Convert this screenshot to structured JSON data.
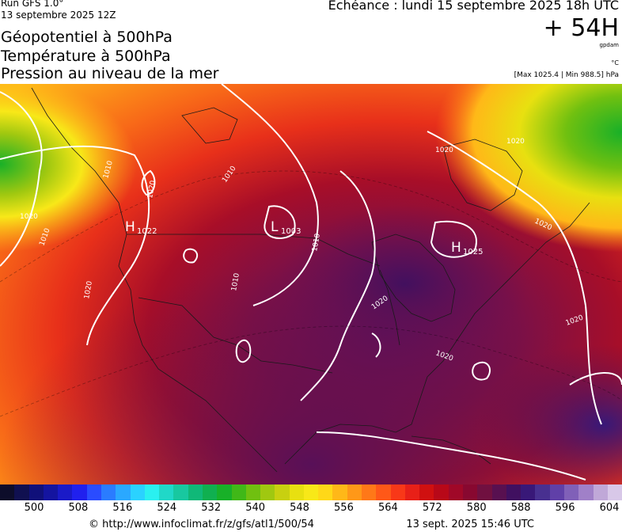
{
  "header": {
    "run_label": "Run GFS 1.0°",
    "run_date": "13 septembre 2025 12Z",
    "title_lines": [
      "Géopotentiel à 500hPa",
      "Température à 500hPa",
      "Pression au niveau de la mer"
    ],
    "echeance": "Echéance : lundi 15 septembre 2025 18h UTC",
    "lead_time": "+ 54H",
    "lead_unit": "gpdam",
    "temp_unit": "°C",
    "max_min": "[Max 1025.4 | Min 988.5] hPa"
  },
  "map": {
    "pressure_centers": [
      {
        "letter": "H",
        "value": "1022"
      },
      {
        "letter": "L",
        "value": "1003"
      },
      {
        "letter": "H",
        "value": "1025"
      }
    ],
    "isobar_labels": [
      "1010",
      "1020",
      "1020",
      "1010",
      "1020",
      "1010",
      "1010",
      "1010",
      "1020",
      "1020",
      "1020",
      "1020",
      "1020",
      "1020"
    ]
  },
  "colorbar": {
    "colors": [
      "#0d0d2a",
      "#101050",
      "#10107a",
      "#1414a0",
      "#1a1ac8",
      "#2020ee",
      "#2a4cff",
      "#2a7cff",
      "#2aa8ff",
      "#2ad2ff",
      "#2af0f0",
      "#20d8c8",
      "#18c8a0",
      "#10b878",
      "#10b050",
      "#18b028",
      "#40b818",
      "#70c010",
      "#a0c810",
      "#c8d010",
      "#e8e010",
      "#f8e818",
      "#ffd818",
      "#ffb818",
      "#ff9818",
      "#ff7818",
      "#ff5818",
      "#f83818",
      "#e82018",
      "#d01010",
      "#b80818",
      "#a00828",
      "#880830",
      "#701040",
      "#581050",
      "#401060",
      "#381878",
      "#483090",
      "#6040a8",
      "#8060b8",
      "#a080c8",
      "#c0a8d8",
      "#d8c8e8"
    ],
    "tick_labels": [
      "500",
      "508",
      "516",
      "524",
      "532",
      "540",
      "548",
      "556",
      "564",
      "572",
      "580",
      "588",
      "596",
      "604"
    ]
  },
  "footer": {
    "url": "© http://www.infoclimat.fr/z/gfs/atl1/500/54",
    "generated": "13 sept. 2025 15:46 UTC"
  }
}
